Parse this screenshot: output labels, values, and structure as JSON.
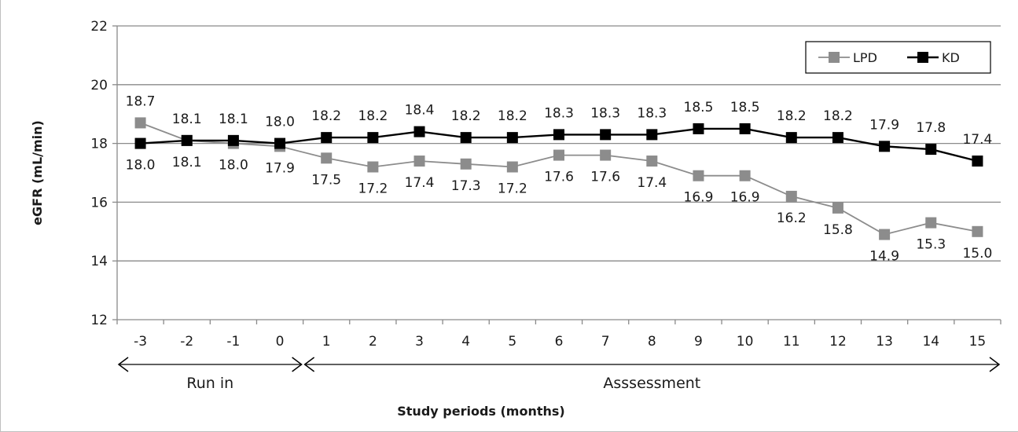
{
  "chart_data": {
    "type": "line",
    "title": "",
    "xlabel": "Study periods (months)",
    "ylabel": "eGFR (mL/min)",
    "ylim": [
      12,
      22
    ],
    "yticks": [
      "12",
      "14",
      "16",
      "18",
      "20",
      "22"
    ],
    "grid": true,
    "legend_position": "top-right",
    "x": [
      "-3",
      "-2",
      "-1",
      "0",
      "1",
      "2",
      "3",
      "4",
      "5",
      "6",
      "7",
      "8",
      "9",
      "10",
      "11",
      "12",
      "13",
      "14",
      "15"
    ],
    "series": [
      {
        "name": "LPD",
        "color": "#8c8c8c",
        "values": [
          18.7,
          18.1,
          18.0,
          17.9,
          17.5,
          17.2,
          17.4,
          17.3,
          17.2,
          17.6,
          17.6,
          17.4,
          16.9,
          16.9,
          16.2,
          15.8,
          14.9,
          15.3,
          15.0
        ],
        "labels": [
          "18.7",
          "18.1",
          "18.0",
          "17.9",
          "17.5",
          "17.2",
          "17.4",
          "17.3",
          "17.2",
          "17.6",
          "17.6",
          "17.4",
          "16.9",
          "16.9",
          "16.2",
          "15.8",
          "14.9",
          "15.3",
          "15.0"
        ]
      },
      {
        "name": "KD",
        "color": "#000000",
        "values": [
          18.0,
          18.1,
          18.1,
          18.0,
          18.2,
          18.2,
          18.4,
          18.2,
          18.2,
          18.3,
          18.3,
          18.3,
          18.5,
          18.5,
          18.2,
          18.2,
          17.9,
          17.8,
          17.4
        ],
        "labels": [
          "18.0",
          "18.1",
          "18.1",
          "18.0",
          "18.2",
          "18.2",
          "18.4",
          "18.2",
          "18.2",
          "18.3",
          "18.3",
          "18.3",
          "18.5",
          "18.5",
          "18.2",
          "18.2",
          "17.9",
          "17.8",
          "17.4"
        ]
      }
    ],
    "periods": [
      {
        "label": "Run in",
        "from": "-3",
        "to": "0"
      },
      {
        "label": "Asssessment",
        "from": "1",
        "to": "15"
      }
    ]
  }
}
